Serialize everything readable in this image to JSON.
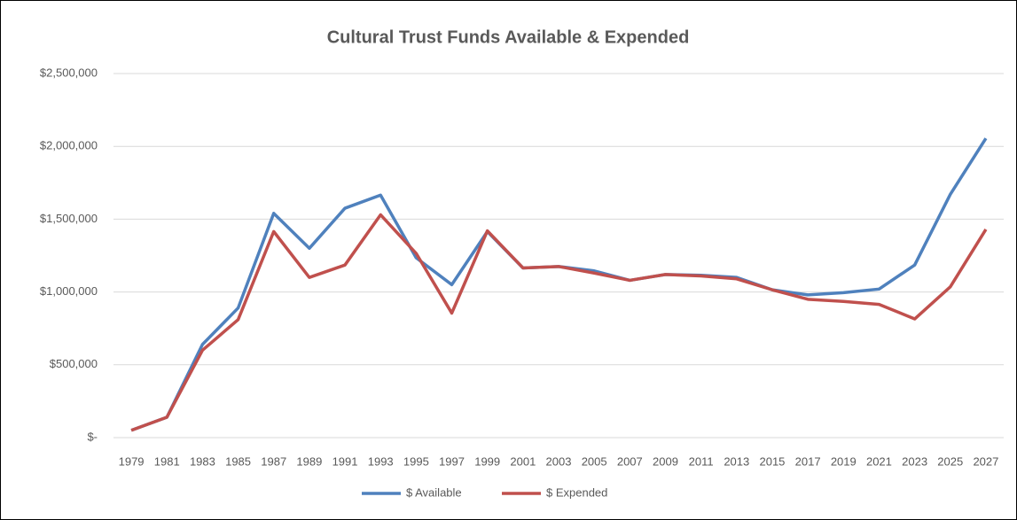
{
  "chart_data": {
    "type": "line",
    "title": "Cultural Trust Funds Available & Expended",
    "categories": [
      "1979",
      "1981",
      "1983",
      "1985",
      "1987",
      "1989",
      "1991",
      "1993",
      "1995",
      "1997",
      "1999",
      "2001",
      "2003",
      "2005",
      "2007",
      "2009",
      "2011",
      "2013",
      "2015",
      "2017",
      "2019",
      "2021",
      "2023",
      "2025",
      "2027"
    ],
    "series": [
      {
        "name": "$ Available",
        "color": "#4f81bd",
        "values": [
          50000,
          140000,
          640000,
          890000,
          1540000,
          1300000,
          1575000,
          1665000,
          1235000,
          1050000,
          1415000,
          1165000,
          1175000,
          1145000,
          1080000,
          1120000,
          1115000,
          1100000,
          1015000,
          980000,
          995000,
          1020000,
          1185000,
          1670000,
          2055000
        ]
      },
      {
        "name": "$ Expended",
        "color": "#c0504d",
        "values": [
          50000,
          140000,
          600000,
          810000,
          1415000,
          1100000,
          1185000,
          1530000,
          1265000,
          855000,
          1420000,
          1165000,
          1175000,
          1130000,
          1080000,
          1120000,
          1110000,
          1090000,
          1015000,
          950000,
          935000,
          915000,
          815000,
          1035000,
          1430000
        ]
      }
    ],
    "ylim": [
      0,
      2500000
    ],
    "yticks": [
      {
        "value": 0,
        "label": "$-"
      },
      {
        "value": 500000,
        "label": "$500,000"
      },
      {
        "value": 1000000,
        "label": "$1,000,000"
      },
      {
        "value": 1500000,
        "label": "$1,500,000"
      },
      {
        "value": 2000000,
        "label": "$2,000,000"
      },
      {
        "value": 2500000,
        "label": "$2,500,000"
      }
    ],
    "grid": true,
    "legend": "bottom"
  }
}
